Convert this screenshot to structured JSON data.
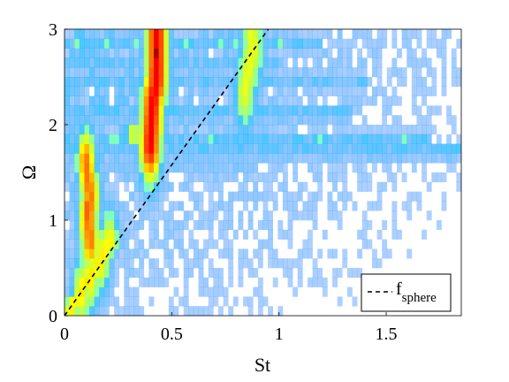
{
  "chart_data": {
    "type": "heatmap",
    "title": "",
    "xlabel": "St",
    "ylabel": "Ω",
    "xlim": [
      0,
      1.85
    ],
    "ylim": [
      0,
      3
    ],
    "xticks": [
      {
        "value": 0,
        "label": "0"
      },
      {
        "value": 0.5,
        "label": "0.5"
      },
      {
        "value": 1,
        "label": "1"
      },
      {
        "value": 1.5,
        "label": "1.5"
      }
    ],
    "yticks": [
      {
        "value": 0,
        "label": "0"
      },
      {
        "value": 1,
        "label": "1"
      },
      {
        "value": 2,
        "label": "2"
      },
      {
        "value": 3,
        "label": "3"
      }
    ],
    "colormap": "jet",
    "legend": {
      "placement": "bottom-right",
      "entries": [
        {
          "label_base": "f",
          "label_sub": "sphere",
          "style": "dashed",
          "color": "#000000"
        }
      ]
    },
    "line": {
      "name": "f_sphere",
      "style": "dashed",
      "x": [
        0,
        0.95
      ],
      "y": [
        0,
        3
      ]
    },
    "ridges": [
      {
        "name": "sphere-frequency-band",
        "points": [
          [
            0.03,
            0.1
          ],
          [
            0.08,
            0.25
          ],
          [
            0.12,
            0.4
          ],
          [
            0.17,
            0.6
          ],
          [
            0.21,
            0.75
          ]
        ],
        "value": 0.55,
        "width": 0.035
      },
      {
        "name": "low-St-band",
        "points": [
          [
            0.1,
            1.6
          ],
          [
            0.12,
            1.25
          ],
          [
            0.11,
            1.0
          ],
          [
            0.12,
            0.8
          ]
        ],
        "value": 0.7,
        "width": 0.035
      },
      {
        "name": "St-0.43-band",
        "points": [
          [
            0.4,
            1.8
          ],
          [
            0.41,
            2.2
          ],
          [
            0.43,
            2.5
          ],
          [
            0.43,
            2.8
          ],
          [
            0.43,
            3.0
          ]
        ],
        "value": 0.85,
        "width": 0.04
      },
      {
        "name": "St-0.86-band",
        "points": [
          [
            0.84,
            2.35
          ],
          [
            0.86,
            2.6
          ],
          [
            0.88,
            2.8
          ],
          [
            0.87,
            3.0
          ]
        ],
        "value": 0.5,
        "width": 0.04
      }
    ],
    "hotspots": [
      {
        "x": 0.43,
        "y": 2.78,
        "value": 1.0
      },
      {
        "x": 0.42,
        "y": 2.5,
        "value": 0.95
      },
      {
        "x": 0.43,
        "y": 2.95,
        "value": 0.85
      },
      {
        "x": 0.11,
        "y": 1.1,
        "value": 0.85
      },
      {
        "x": 0.12,
        "y": 0.8,
        "value": 0.75
      },
      {
        "x": 0.1,
        "y": 1.65,
        "value": 0.65
      },
      {
        "x": 0.43,
        "y": 2.0,
        "value": 0.7
      },
      {
        "x": 0.88,
        "y": 2.8,
        "value": 0.55
      },
      {
        "x": 0.32,
        "y": 1.9,
        "value": 0.55
      }
    ],
    "horizontal_bands": [
      {
        "y": 2.85,
        "x_end": 1.2,
        "value": 0.3
      },
      {
        "y": 2.62,
        "x_end": 1.0,
        "value": 0.25
      },
      {
        "y": 2.47,
        "x_end": 1.4,
        "value": 0.25
      },
      {
        "y": 2.12,
        "x_end": 1.35,
        "value": 0.3
      },
      {
        "y": 1.85,
        "x_end": 1.7,
        "value": 0.28
      },
      {
        "y": 1.72,
        "x_end": 1.85,
        "value": 0.3
      },
      {
        "y": 1.55,
        "x_end": 0.9,
        "value": 0.15
      }
    ]
  }
}
